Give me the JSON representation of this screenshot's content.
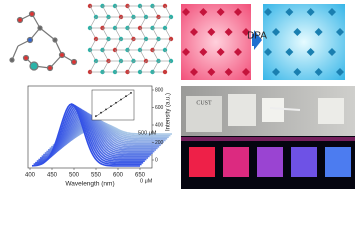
{
  "top": {
    "arrow_label": "DPA"
  },
  "spectrum": {
    "x_label": "Wavelength (nm)",
    "y_label": "Intensity (a.u.)",
    "x_ticks": [
      400,
      450,
      500,
      550,
      600,
      650
    ],
    "y_ticks": [
      0,
      200,
      400,
      600,
      800
    ],
    "top_label": "500 μM",
    "bottom_label": "0 μM"
  },
  "photo": {
    "card_text": "CUST"
  }
}
